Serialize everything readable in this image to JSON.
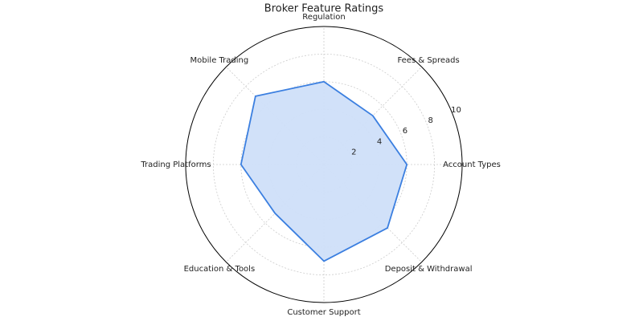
{
  "chart_data": {
    "type": "radar",
    "title": "Broker Feature Ratings",
    "categories": [
      "Regulation",
      "Fees & Spreads",
      "Account Types",
      "Deposit & Withdrawal",
      "Customer Support",
      "Education & Tools",
      "Trading Platforms",
      "Mobile Trading"
    ],
    "values": [
      6,
      5,
      6,
      6.5,
      7,
      5,
      6,
      7
    ],
    "color": "#3b7fe0",
    "fill": "#cfdff9",
    "ylim": [
      0,
      10
    ],
    "yticks": [
      2,
      4,
      6,
      8,
      10
    ],
    "grid": true
  }
}
